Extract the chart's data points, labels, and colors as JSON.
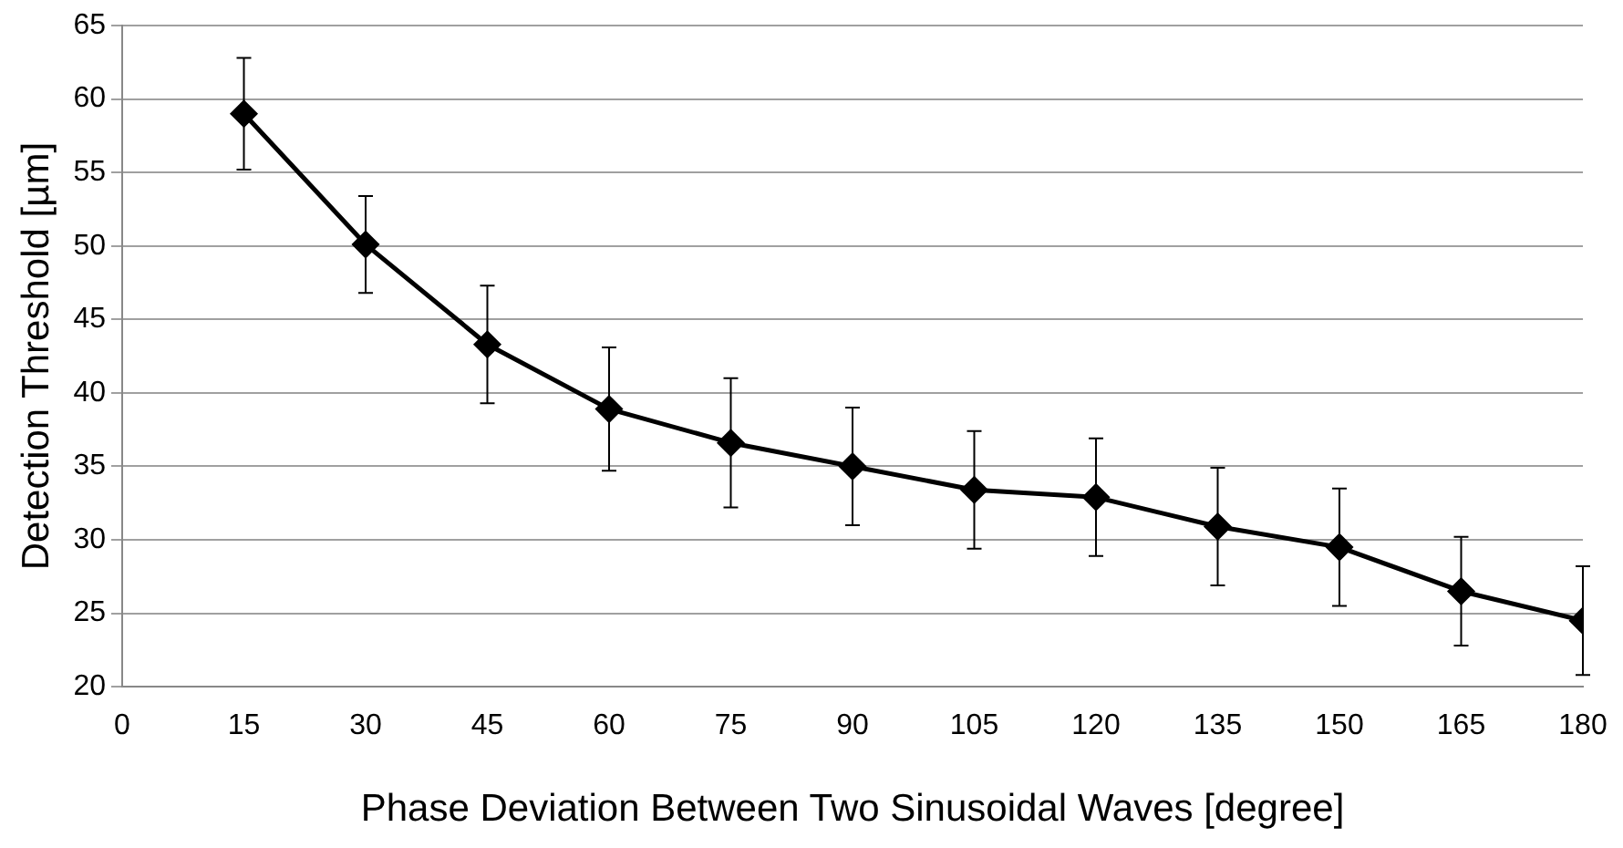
{
  "chart_data": {
    "type": "line",
    "xlabel": "Phase Deviation Between Two Sinusoidal Waves [degree]",
    "ylabel": "Detection Threshold [µm]",
    "x": [
      15,
      30,
      45,
      60,
      75,
      90,
      105,
      120,
      135,
      150,
      165,
      180
    ],
    "series": [
      {
        "color": "#000000",
        "values": [
          59.0,
          50.1,
          43.3,
          38.9,
          36.6,
          35.0,
          33.4,
          32.9,
          30.9,
          29.5,
          26.5,
          24.5
        ],
        "errors": [
          3.8,
          3.3,
          4.0,
          4.2,
          4.4,
          4.0,
          4.0,
          4.0,
          4.0,
          4.0,
          3.7,
          3.7
        ]
      }
    ],
    "xlim": [
      0,
      180
    ],
    "xticks": [
      0,
      15,
      30,
      45,
      60,
      75,
      90,
      105,
      120,
      135,
      150,
      165,
      180
    ],
    "ylim": [
      20,
      65
    ],
    "yticks": [
      20,
      25,
      30,
      35,
      40,
      45,
      50,
      55,
      60,
      65
    ],
    "grid": "y",
    "legend": false,
    "marker": "diamond",
    "line_style": "solid"
  }
}
